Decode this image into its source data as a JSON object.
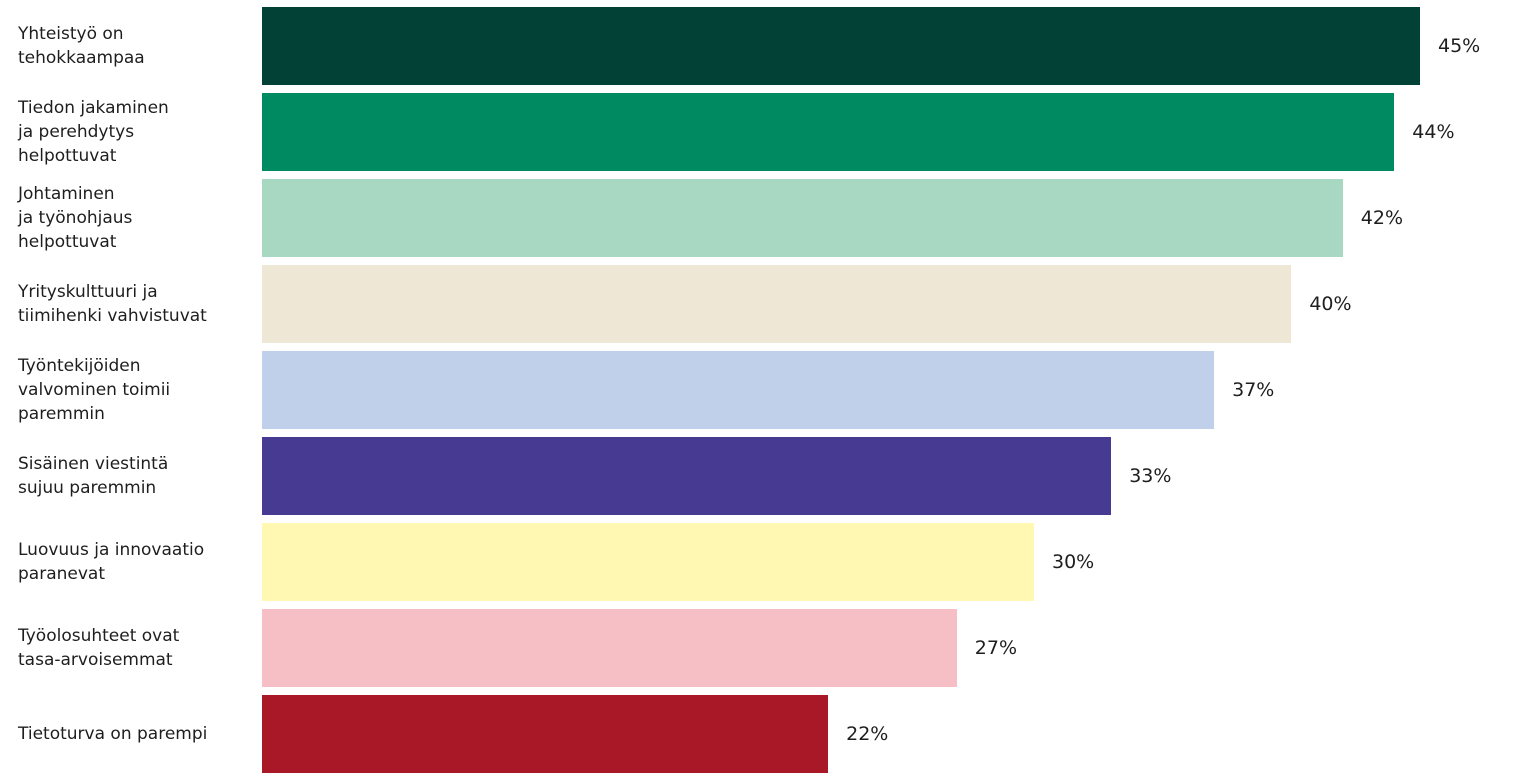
{
  "chart_data": {
    "type": "hbar",
    "categories": [
      "Yhteistyö on\ntehokkaampaa",
      "Tiedon jakaminen\nja perehdytys\nhelpottuvat",
      "Johtaminen\nja työnohjaus\nhelpottuvat",
      "Yrityskulttuuri ja\ntiimihenki vahvistuvat",
      "Työntekijöiden\nvalvominen toimii\nparemmin",
      "Sisäinen viestintä\nsujuu paremmin",
      "Luovuus ja innovaatio\nparanevat",
      "Työolosuhteet ovat\ntasa-arvoisemmat",
      "Tietoturva on parempi"
    ],
    "values": [
      45,
      44,
      42,
      40,
      37,
      33,
      30,
      27,
      22
    ],
    "value_labels": [
      "45%",
      "44%",
      "42%",
      "40%",
      "37%",
      "33%",
      "30%",
      "27%",
      "22%"
    ],
    "colors": [
      "#024236",
      "#008a62",
      "#a8d8c1",
      "#efe7d5",
      "#c0cfea",
      "#473a93",
      "#fff8b2",
      "#f6bec5",
      "#a81826"
    ]
  }
}
